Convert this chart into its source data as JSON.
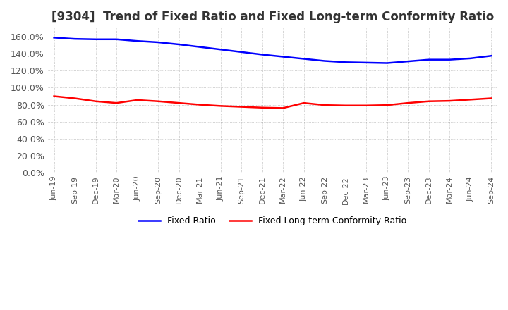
{
  "title": "[9304]  Trend of Fixed Ratio and Fixed Long-term Conformity Ratio",
  "x_labels": [
    "Jun-19",
    "Sep-19",
    "Dec-19",
    "Mar-20",
    "Jun-20",
    "Sep-20",
    "Dec-20",
    "Mar-21",
    "Jun-21",
    "Sep-21",
    "Dec-21",
    "Mar-22",
    "Jun-22",
    "Sep-22",
    "Dec-22",
    "Mar-23",
    "Jun-23",
    "Sep-23",
    "Dec-23",
    "Mar-24",
    "Jun-24",
    "Sep-24"
  ],
  "fixed_ratio": [
    1.59,
    1.575,
    1.57,
    1.57,
    1.55,
    1.535,
    1.51,
    1.48,
    1.45,
    1.42,
    1.39,
    1.365,
    1.34,
    1.315,
    1.3,
    1.295,
    1.29,
    1.31,
    1.33,
    1.33,
    1.345,
    1.375
  ],
  "fixed_long_term": [
    0.9,
    0.875,
    0.84,
    0.82,
    0.855,
    0.84,
    0.82,
    0.8,
    0.785,
    0.775,
    0.765,
    0.76,
    0.82,
    0.795,
    0.79,
    0.79,
    0.795,
    0.82,
    0.84,
    0.845,
    0.86,
    0.875
  ],
  "fixed_ratio_color": "#0000FF",
  "fixed_long_term_color": "#FF0000",
  "ylim": [
    0.0,
    1.7
  ],
  "yticks": [
    0.0,
    0.2,
    0.4,
    0.6,
    0.8,
    1.0,
    1.2,
    1.4,
    1.6
  ],
  "background_color": "#FFFFFF",
  "grid_color": "#AAAAAA",
  "title_fontsize": 12,
  "legend_labels": [
    "Fixed Ratio",
    "Fixed Long-term Conformity Ratio"
  ]
}
